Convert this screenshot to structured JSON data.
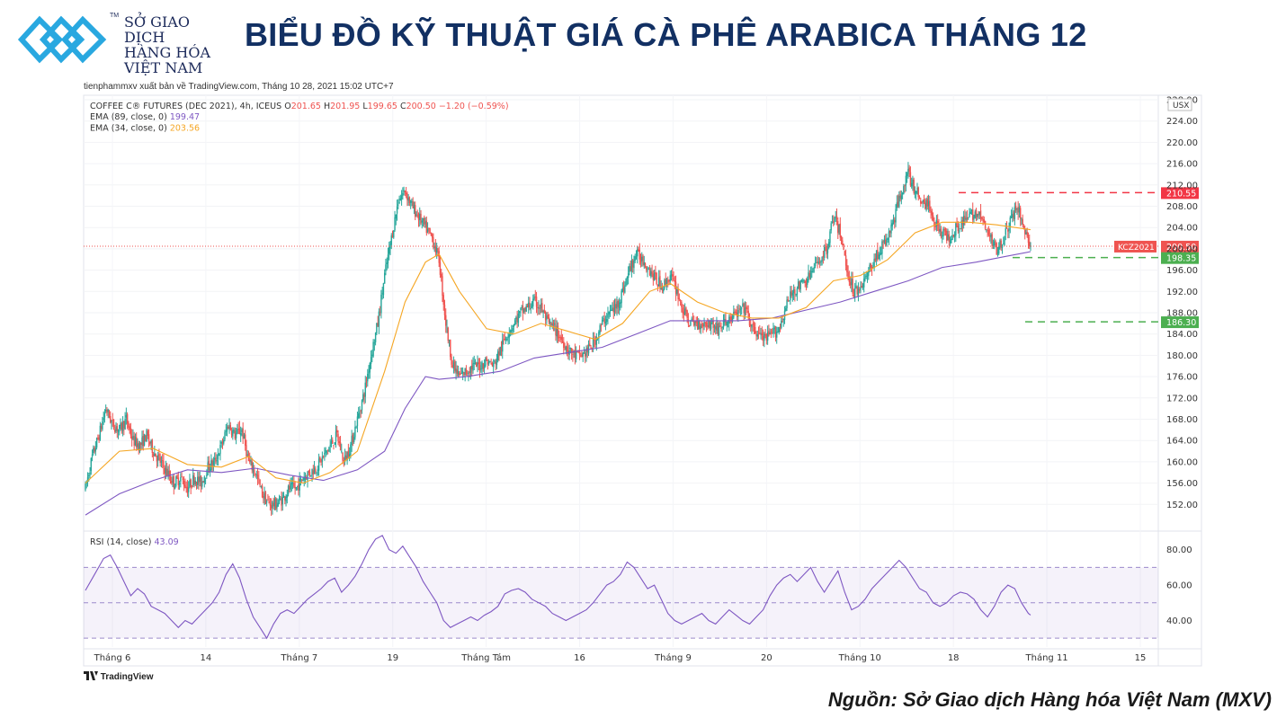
{
  "logo": {
    "lines": [
      "SỞ GIAO DỊCH",
      "HÀNG HÓA",
      "VIỆT NAM"
    ],
    "tm": "TM"
  },
  "title": "BIỂU ĐỒ KỸ THUẬT GIÁ CÀ PHÊ ARABICA THÁNG 12",
  "published": "tienphammxv xuất bản về TradingView.com, Tháng 10 28, 2021 15:02 UTC+7",
  "brand": "TradingView",
  "source": "Nguồn: Sở Giao dịch Hàng hóa Việt Nam (MXV)",
  "colors": {
    "up": "#26a69a",
    "down": "#ef5350",
    "ema89": "#7e57c2",
    "ema34": "#f5a623",
    "rsi": "#7e57c2",
    "resistance": "#f23645",
    "support": "#4caf50",
    "title": "#123063"
  },
  "chart_data": [
    {
      "type": "candlestick",
      "symbol": "COFFEE C® FUTURES (DEC 2021), 4h, ICEUS",
      "ohlc": {
        "O": "201.65",
        "H": "201.95",
        "L": "199.65",
        "C": "200.50",
        "change": "−1.20 (−0.59%)"
      },
      "indicators": [
        {
          "name": "EMA (89, close, 0)",
          "value": "199.47"
        },
        {
          "name": "EMA (34, close, 0)",
          "value": "203.56"
        }
      ],
      "currency": "USX",
      "ylim": [
        148,
        228
      ],
      "y_ticks": [
        152,
        156,
        160,
        164,
        168,
        172,
        176,
        180,
        184,
        188,
        192,
        196,
        200,
        204,
        208,
        212,
        216,
        220,
        224,
        228
      ],
      "x_labels": [
        "Tháng 6",
        "14",
        "Tháng 7",
        "19",
        "Tháng Tám",
        "16",
        "Tháng 9",
        "20",
        "Tháng 10",
        "18",
        "Tháng 11",
        "15"
      ],
      "price_path": [
        [
          0,
          155
        ],
        [
          6,
          161
        ],
        [
          12,
          165
        ],
        [
          18,
          170
        ],
        [
          24,
          167
        ],
        [
          30,
          166
        ],
        [
          36,
          168
        ],
        [
          42,
          164
        ],
        [
          48,
          163
        ],
        [
          54,
          165
        ],
        [
          60,
          162
        ],
        [
          66,
          160
        ],
        [
          72,
          158
        ],
        [
          78,
          156
        ],
        [
          84,
          157
        ],
        [
          90,
          155
        ],
        [
          96,
          157
        ],
        [
          102,
          156
        ],
        [
          108,
          159
        ],
        [
          114,
          160
        ],
        [
          120,
          163
        ],
        [
          126,
          167
        ],
        [
          132,
          165
        ],
        [
          138,
          166
        ],
        [
          144,
          160
        ],
        [
          150,
          158
        ],
        [
          156,
          154
        ],
        [
          162,
          152
        ],
        [
          168,
          152
        ],
        [
          174,
          153
        ],
        [
          180,
          155
        ],
        [
          186,
          155
        ],
        [
          192,
          157
        ],
        [
          198,
          158
        ],
        [
          204,
          159
        ],
        [
          210,
          161
        ],
        [
          216,
          163
        ],
        [
          222,
          165
        ],
        [
          228,
          160
        ],
        [
          234,
          163
        ],
        [
          240,
          168
        ],
        [
          246,
          173
        ],
        [
          252,
          180
        ],
        [
          258,
          186
        ],
        [
          264,
          195
        ],
        [
          270,
          202
        ],
        [
          276,
          209
        ],
        [
          282,
          211
        ],
        [
          288,
          208
        ],
        [
          294,
          206
        ],
        [
          300,
          204
        ],
        [
          306,
          202
        ],
        [
          312,
          198
        ],
        [
          318,
          186
        ],
        [
          324,
          178
        ],
        [
          330,
          176
        ],
        [
          336,
          177
        ],
        [
          342,
          178
        ],
        [
          348,
          178
        ],
        [
          354,
          179
        ],
        [
          360,
          178
        ],
        [
          366,
          181
        ],
        [
          372,
          184
        ],
        [
          378,
          186
        ],
        [
          384,
          188
        ],
        [
          390,
          189
        ],
        [
          396,
          190
        ],
        [
          402,
          189
        ],
        [
          408,
          186
        ],
        [
          414,
          185
        ],
        [
          420,
          183
        ],
        [
          426,
          181
        ],
        [
          432,
          180
        ],
        [
          438,
          180
        ],
        [
          444,
          181
        ],
        [
          450,
          183
        ],
        [
          456,
          186
        ],
        [
          462,
          188
        ],
        [
          468,
          189
        ],
        [
          474,
          192
        ],
        [
          480,
          196
        ],
        [
          486,
          199
        ],
        [
          492,
          198
        ],
        [
          498,
          196
        ],
        [
          504,
          194
        ],
        [
          510,
          193
        ],
        [
          516,
          195
        ],
        [
          522,
          192
        ],
        [
          528,
          188
        ],
        [
          534,
          186
        ],
        [
          540,
          186
        ],
        [
          546,
          186
        ],
        [
          552,
          186
        ],
        [
          558,
          185
        ],
        [
          564,
          186
        ],
        [
          570,
          187
        ],
        [
          576,
          188
        ],
        [
          582,
          189
        ],
        [
          588,
          185
        ],
        [
          594,
          184
        ],
        [
          600,
          183
        ],
        [
          606,
          184
        ],
        [
          612,
          185
        ],
        [
          618,
          189
        ],
        [
          624,
          192
        ],
        [
          630,
          193
        ],
        [
          636,
          194
        ],
        [
          642,
          196
        ],
        [
          648,
          198
        ],
        [
          654,
          200
        ],
        [
          660,
          206
        ],
        [
          666,
          203
        ],
        [
          672,
          196
        ],
        [
          678,
          192
        ],
        [
          684,
          193
        ],
        [
          690,
          195
        ],
        [
          696,
          198
        ],
        [
          702,
          200
        ],
        [
          708,
          202
        ],
        [
          714,
          206
        ],
        [
          720,
          211
        ],
        [
          726,
          214
        ],
        [
          732,
          211
        ],
        [
          738,
          209
        ],
        [
          744,
          208
        ],
        [
          750,
          205
        ],
        [
          756,
          203
        ],
        [
          762,
          202
        ],
        [
          768,
          204
        ],
        [
          774,
          205
        ],
        [
          780,
          206
        ],
        [
          786,
          207
        ],
        [
          792,
          205
        ],
        [
          798,
          202
        ],
        [
          804,
          200
        ],
        [
          810,
          202
        ],
        [
          816,
          205
        ],
        [
          822,
          208
        ],
        [
          828,
          204
        ],
        [
          834,
          200.5
        ]
      ],
      "ema34": [
        [
          0,
          156
        ],
        [
          30,
          162
        ],
        [
          60,
          162.5
        ],
        [
          90,
          159.5
        ],
        [
          120,
          159
        ],
        [
          144,
          161
        ],
        [
          168,
          157
        ],
        [
          192,
          156
        ],
        [
          216,
          158
        ],
        [
          240,
          162
        ],
        [
          264,
          177
        ],
        [
          282,
          190
        ],
        [
          300,
          197.5
        ],
        [
          312,
          199
        ],
        [
          330,
          192
        ],
        [
          354,
          185
        ],
        [
          378,
          184
        ],
        [
          402,
          186
        ],
        [
          426,
          184.5
        ],
        [
          450,
          183
        ],
        [
          474,
          186
        ],
        [
          498,
          192
        ],
        [
          516,
          193.5
        ],
        [
          540,
          190
        ],
        [
          564,
          188
        ],
        [
          588,
          187
        ],
        [
          612,
          187
        ],
        [
          636,
          189
        ],
        [
          660,
          194
        ],
        [
          684,
          195
        ],
        [
          708,
          198
        ],
        [
          732,
          203
        ],
        [
          756,
          205
        ],
        [
          780,
          205
        ],
        [
          804,
          204.5
        ],
        [
          834,
          203.6
        ]
      ],
      "ema89": [
        [
          0,
          150
        ],
        [
          30,
          154
        ],
        [
          60,
          156.5
        ],
        [
          90,
          158.5
        ],
        [
          120,
          158
        ],
        [
          150,
          158.8
        ],
        [
          180,
          157.5
        ],
        [
          210,
          156.5
        ],
        [
          240,
          158.5
        ],
        [
          264,
          162
        ],
        [
          282,
          170
        ],
        [
          300,
          176
        ],
        [
          312,
          175.5
        ],
        [
          336,
          176
        ],
        [
          366,
          177
        ],
        [
          396,
          179.5
        ],
        [
          426,
          180.5
        ],
        [
          456,
          181.5
        ],
        [
          486,
          184
        ],
        [
          516,
          186.5
        ],
        [
          546,
          186.5
        ],
        [
          576,
          186.5
        ],
        [
          606,
          187
        ],
        [
          636,
          188.5
        ],
        [
          666,
          190
        ],
        [
          696,
          192
        ],
        [
          726,
          194
        ],
        [
          756,
          196.5
        ],
        [
          786,
          197.5
        ],
        [
          810,
          198.5
        ],
        [
          834,
          199.47
        ]
      ],
      "current_price": 200.5,
      "current_label": "KCZ2021",
      "levels": [
        {
          "name": "resistance",
          "value": 210.55,
          "label": "210.55"
        },
        {
          "name": "support",
          "value": 198.35,
          "label": "198.35"
        },
        {
          "name": "support",
          "value": 186.3,
          "label": "186.30"
        }
      ]
    },
    {
      "type": "line",
      "name": "RSI (14, close)",
      "value": "43.09",
      "ylim": [
        25,
        90
      ],
      "y_ticks": [
        40,
        60,
        80
      ],
      "bands": [
        30,
        50,
        70
      ],
      "rsi_path": [
        [
          0,
          57
        ],
        [
          8,
          66
        ],
        [
          16,
          75
        ],
        [
          22,
          77
        ],
        [
          28,
          70
        ],
        [
          34,
          62
        ],
        [
          40,
          54
        ],
        [
          46,
          58
        ],
        [
          52,
          55
        ],
        [
          58,
          48
        ],
        [
          64,
          46
        ],
        [
          70,
          44
        ],
        [
          76,
          40
        ],
        [
          82,
          36
        ],
        [
          88,
          40
        ],
        [
          94,
          38
        ],
        [
          100,
          42
        ],
        [
          106,
          46
        ],
        [
          112,
          50
        ],
        [
          118,
          56
        ],
        [
          124,
          66
        ],
        [
          130,
          72
        ],
        [
          136,
          64
        ],
        [
          142,
          52
        ],
        [
          148,
          42
        ],
        [
          154,
          36
        ],
        [
          160,
          30
        ],
        [
          166,
          38
        ],
        [
          172,
          44
        ],
        [
          178,
          46
        ],
        [
          184,
          44
        ],
        [
          190,
          48
        ],
        [
          196,
          52
        ],
        [
          202,
          55
        ],
        [
          208,
          58
        ],
        [
          214,
          62
        ],
        [
          220,
          64
        ],
        [
          226,
          56
        ],
        [
          232,
          60
        ],
        [
          238,
          65
        ],
        [
          244,
          72
        ],
        [
          250,
          80
        ],
        [
          256,
          86
        ],
        [
          262,
          88
        ],
        [
          268,
          80
        ],
        [
          274,
          78
        ],
        [
          280,
          82
        ],
        [
          286,
          76
        ],
        [
          292,
          70
        ],
        [
          298,
          62
        ],
        [
          304,
          56
        ],
        [
          310,
          50
        ],
        [
          316,
          40
        ],
        [
          322,
          36
        ],
        [
          328,
          38
        ],
        [
          334,
          40
        ],
        [
          340,
          42
        ],
        [
          346,
          40
        ],
        [
          352,
          43
        ],
        [
          358,
          45
        ],
        [
          364,
          48
        ],
        [
          370,
          55
        ],
        [
          376,
          57
        ],
        [
          382,
          58
        ],
        [
          388,
          56
        ],
        [
          394,
          52
        ],
        [
          400,
          50
        ],
        [
          406,
          48
        ],
        [
          412,
          44
        ],
        [
          418,
          42
        ],
        [
          424,
          40
        ],
        [
          430,
          42
        ],
        [
          436,
          44
        ],
        [
          442,
          46
        ],
        [
          448,
          50
        ],
        [
          454,
          55
        ],
        [
          460,
          60
        ],
        [
          466,
          62
        ],
        [
          472,
          66
        ],
        [
          478,
          73
        ],
        [
          484,
          70
        ],
        [
          490,
          64
        ],
        [
          496,
          58
        ],
        [
          502,
          60
        ],
        [
          508,
          52
        ],
        [
          514,
          44
        ],
        [
          520,
          40
        ],
        [
          526,
          38
        ],
        [
          532,
          40
        ],
        [
          538,
          42
        ],
        [
          544,
          44
        ],
        [
          550,
          40
        ],
        [
          556,
          38
        ],
        [
          562,
          42
        ],
        [
          568,
          46
        ],
        [
          574,
          43
        ],
        [
          580,
          40
        ],
        [
          586,
          38
        ],
        [
          592,
          42
        ],
        [
          598,
          46
        ],
        [
          604,
          54
        ],
        [
          610,
          60
        ],
        [
          616,
          64
        ],
        [
          622,
          66
        ],
        [
          628,
          62
        ],
        [
          634,
          66
        ],
        [
          640,
          70
        ],
        [
          646,
          62
        ],
        [
          652,
          56
        ],
        [
          658,
          62
        ],
        [
          664,
          68
        ],
        [
          670,
          56
        ],
        [
          676,
          46
        ],
        [
          682,
          48
        ],
        [
          688,
          52
        ],
        [
          694,
          58
        ],
        [
          700,
          62
        ],
        [
          706,
          66
        ],
        [
          712,
          70
        ],
        [
          718,
          74
        ],
        [
          724,
          70
        ],
        [
          730,
          64
        ],
        [
          736,
          58
        ],
        [
          742,
          56
        ],
        [
          748,
          50
        ],
        [
          754,
          48
        ],
        [
          760,
          50
        ],
        [
          766,
          54
        ],
        [
          772,
          56
        ],
        [
          778,
          55
        ],
        [
          784,
          52
        ],
        [
          790,
          46
        ],
        [
          796,
          42
        ],
        [
          802,
          48
        ],
        [
          808,
          56
        ],
        [
          814,
          60
        ],
        [
          820,
          58
        ],
        [
          826,
          50
        ],
        [
          832,
          44
        ],
        [
          834,
          43.09
        ]
      ]
    }
  ]
}
